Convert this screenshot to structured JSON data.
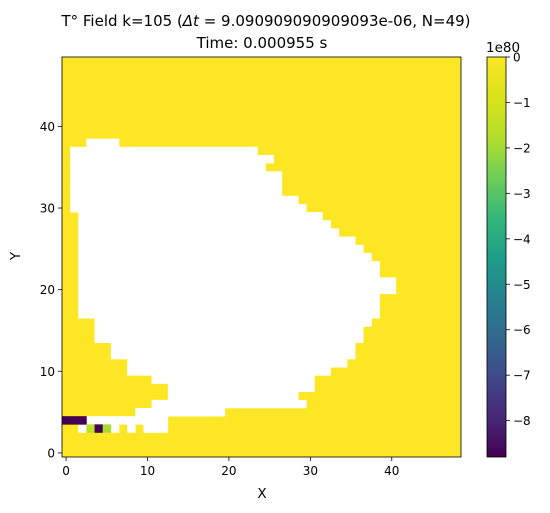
{
  "chart_data": {
    "type": "heatmap",
    "title_line1_prefix": "T° Field k=105 (",
    "title_math": "Δt",
    "title_line1_suffix": " = 9.090909090909093e-06, N=49)",
    "title_line2": "Time: 0.000955 s",
    "xlabel": "X",
    "ylabel": "Y",
    "grid_size": 49,
    "xlim": [
      -0.5,
      48.5
    ],
    "ylim": [
      -0.5,
      48.5
    ],
    "x_ticks": [
      0,
      10,
      20,
      30,
      40
    ],
    "y_ticks": [
      0,
      10,
      20,
      30,
      40
    ],
    "colormap": "viridis",
    "background_value": 0,
    "colorbar": {
      "min": -8.8,
      "max": 0,
      "ticks": [
        0,
        -1,
        -2,
        -3,
        -4,
        -5,
        -6,
        -7,
        -8
      ],
      "multiplier_label": "1e80",
      "minus_sign": "−"
    },
    "white_region": {
      "description_value": "not-a-number (rendered blank)",
      "rows": [
        {
          "y": 5,
          "x0": 9,
          "x1": 19
        },
        {
          "y": 6,
          "x0": 11,
          "x1": 29
        },
        {
          "y": 7,
          "x0": 13,
          "x1": 28
        },
        {
          "y": 8,
          "x0": 13,
          "x1": 30
        },
        {
          "y": 9,
          "x0": 11,
          "x1": 30
        },
        {
          "y": 10,
          "x0": 8,
          "x1": 32
        },
        {
          "y": 11,
          "x0": 8,
          "x1": 34
        },
        {
          "y": 12,
          "x0": 6,
          "x1": 35
        },
        {
          "y": 13,
          "x0": 6,
          "x1": 35
        },
        {
          "y": 14,
          "x0": 4,
          "x1": 36
        },
        {
          "y": 15,
          "x0": 4,
          "x1": 36
        },
        {
          "y": 16,
          "x0": 4,
          "x1": 37
        },
        {
          "y": 17,
          "x0": 2,
          "x1": 38
        },
        {
          "y": 18,
          "x0": 2,
          "x1": 38
        },
        {
          "y": 19,
          "x0": 2,
          "x1": 38
        },
        {
          "y": 20,
          "x0": 2,
          "x1": 40
        },
        {
          "y": 21,
          "x0": 2,
          "x1": 40
        },
        {
          "y": 22,
          "x0": 2,
          "x1": 38
        },
        {
          "y": 23,
          "x0": 2,
          "x1": 38
        },
        {
          "y": 24,
          "x0": 2,
          "x1": 37
        },
        {
          "y": 25,
          "x0": 2,
          "x1": 36
        },
        {
          "y": 26,
          "x0": 2,
          "x1": 35
        },
        {
          "y": 27,
          "x0": 2,
          "x1": 33
        },
        {
          "y": 28,
          "x0": 2,
          "x1": 32
        },
        {
          "y": 29,
          "x0": 2,
          "x1": 31
        },
        {
          "y": 30,
          "x0": 1,
          "x1": 29
        },
        {
          "y": 31,
          "x0": 1,
          "x1": 28
        },
        {
          "y": 32,
          "x0": 1,
          "x1": 26
        },
        {
          "y": 33,
          "x0": 1,
          "x1": 26
        },
        {
          "y": 34,
          "x0": 1,
          "x1": 26
        },
        {
          "y": 35,
          "x0": 1,
          "x1": 24
        },
        {
          "y": 36,
          "x0": 1,
          "x1": 25
        },
        {
          "y": 37,
          "x0": 1,
          "x1": 23
        },
        {
          "y": 38,
          "x0": 3,
          "x1": 6
        }
      ]
    },
    "value_cells": [
      {
        "x": 0,
        "y": 4,
        "value": -8.8
      },
      {
        "x": 1,
        "y": 4,
        "value": -8.8
      },
      {
        "x": 2,
        "y": 4,
        "value": -8.8
      },
      {
        "x": 3,
        "y": 3,
        "value": -1.5
      },
      {
        "x": 4,
        "y": 3,
        "value": -8.8
      },
      {
        "x": 5,
        "y": 3,
        "value": -1.9
      }
    ],
    "extra_white_cells": [
      {
        "x": 2,
        "y": 3
      },
      {
        "x": 6,
        "y": 3
      },
      {
        "x": 7,
        "y": 3
      },
      {
        "x": 9,
        "y": 3
      },
      {
        "x": 6,
        "y": 4
      },
      {
        "x": 8,
        "y": 4
      },
      {
        "x": 8,
        "y": 3
      },
      {
        "x": 3,
        "y": 4
      },
      {
        "x": 4,
        "y": 4
      },
      {
        "x": 5,
        "y": 4
      },
      {
        "x": 7,
        "y": 4
      },
      {
        "x": 9,
        "y": 4
      },
      {
        "x": 10,
        "y": 4
      },
      {
        "x": 11,
        "y": 4
      },
      {
        "x": 10,
        "y": 3
      },
      {
        "x": 10,
        "y": 5
      },
      {
        "x": 9,
        "y": 5
      }
    ]
  }
}
